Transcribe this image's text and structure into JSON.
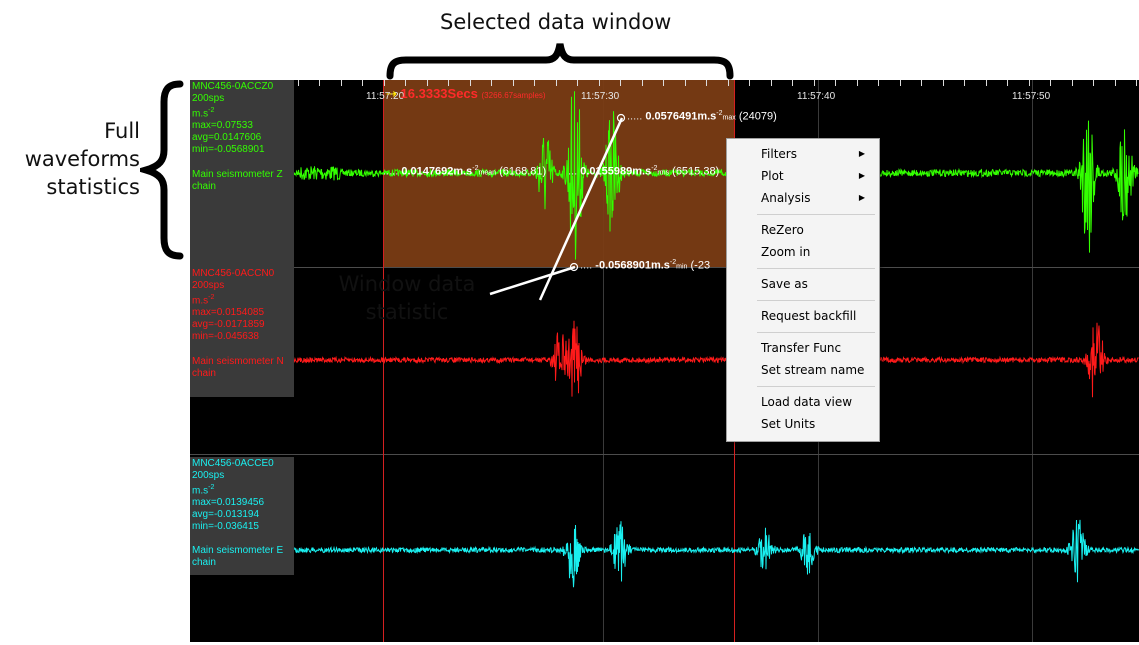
{
  "annotations": {
    "selected_window": "Selected data window",
    "full_stats_line1": "Full",
    "full_stats_line2": "waveforms",
    "full_stats_line3": "statistics",
    "window_stat_line1": "Window data",
    "window_stat_line2": "statistic"
  },
  "time_axis": {
    "ticks": [
      "11:57:20",
      "11:57:30",
      "11:57:40",
      "11:57:50"
    ]
  },
  "selection": {
    "duration": "16.3333Secs",
    "samples": "(3266.67samples)",
    "max_value": "0.0576491m.s",
    "max_unit": "-2",
    "max_sub": "max",
    "max_index": "(24079)",
    "mean_value": "0.0147692m.s",
    "mean_unit": "-2",
    "mean_sub": "mean",
    "mean_index": "(6168.81)",
    "rms_value": "0.0155989m.s",
    "rms_unit": "-2",
    "rms_sub": "rms",
    "rms_index": "(6515.38)",
    "min_value": "-0.0568901m.s",
    "min_unit": "-2",
    "min_sub": "min",
    "min_index": "(-23"
  },
  "channels": [
    {
      "name": "MNC456-0ACCZ0",
      "rate": "200sps",
      "unit": "m.s",
      "unit_exp": "-2",
      "max": "max=0.07533",
      "avg": "avg=0.0147606",
      "min": "min=-0.0568901",
      "desc1": "Main seismometer Z",
      "desc2": "chain",
      "color": "#33ff00",
      "label_bg": "#3a3a3a"
    },
    {
      "name": "MNC456-0ACCN0",
      "rate": "200sps",
      "unit": "m.s",
      "unit_exp": "-2",
      "max": "max=0.0154085",
      "avg": "avg=-0.0171859",
      "min": "min=-0.045638",
      "desc1": "Main seismometer N",
      "desc2": "chain",
      "color": "#ff1a1a",
      "label_bg": "#3a3a3a"
    },
    {
      "name": "MNC456-0ACCE0",
      "rate": "200sps",
      "unit": "m.s",
      "unit_exp": "-2",
      "max": "max=0.0139456",
      "avg": "avg=-0.013194",
      "min": "min=-0.036415",
      "desc1": "Main seismometer E",
      "desc2": "chain",
      "color": "#1af0f0",
      "label_bg": "#3a3a3a"
    }
  ],
  "context_menu": {
    "filters": "Filters",
    "plot": "Plot",
    "analysis": "Analysis",
    "rezero": "ReZero",
    "zoom_in": "Zoom in",
    "save_as": "Save as",
    "request_backfill": "Request backfill",
    "transfer_func": "Transfer Func",
    "set_stream_name": "Set stream name",
    "load_data_view": "Load data view",
    "set_units": "Set Units"
  }
}
